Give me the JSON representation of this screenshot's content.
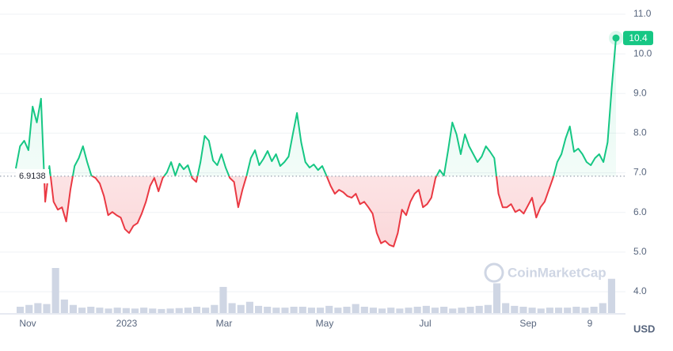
{
  "chart_data": {
    "type": "line",
    "x_labels": [
      "Nov",
      "2023",
      "Mar",
      "May",
      "Jul",
      "Sep",
      "9"
    ],
    "series": [
      {
        "name": "Price",
        "color": "#16c784",
        "below_color": "#ea3943",
        "values": [
          7.11,
          7.67,
          7.81,
          7.57,
          8.67,
          8.27,
          8.87,
          6.27,
          7.17,
          6.27,
          6.07,
          6.13,
          5.77,
          6.57,
          7.17,
          7.37,
          7.67,
          7.27,
          6.93,
          6.87,
          6.73,
          6.41,
          5.93,
          6.01,
          5.93,
          5.87,
          5.58,
          5.48,
          5.66,
          5.73,
          5.97,
          6.27,
          6.67,
          6.87,
          6.53,
          6.87,
          7.01,
          7.27,
          6.93,
          7.23,
          7.09,
          7.19,
          6.87,
          6.77,
          7.27,
          7.93,
          7.81,
          7.31,
          7.19,
          7.47,
          7.13,
          6.87,
          6.77,
          6.13,
          6.57,
          6.93,
          7.37,
          7.57,
          7.19,
          7.35,
          7.55,
          7.29,
          7.47,
          7.17,
          7.27,
          7.41,
          7.97,
          8.51,
          7.77,
          7.27,
          7.13,
          7.21,
          7.07,
          7.17,
          6.93,
          6.67,
          6.47,
          6.57,
          6.51,
          6.41,
          6.37,
          6.47,
          6.21,
          6.27,
          6.13,
          5.97,
          5.48,
          5.22,
          5.28,
          5.18,
          5.14,
          5.48,
          6.07,
          5.93,
          6.27,
          6.47,
          6.57,
          6.13,
          6.21,
          6.37,
          6.87,
          7.07,
          6.93,
          7.57,
          8.27,
          7.97,
          7.47,
          7.97,
          7.67,
          7.47,
          7.27,
          7.41,
          7.67,
          7.53,
          7.37,
          6.47,
          6.13,
          6.13,
          6.21,
          6.01,
          6.07,
          5.97,
          6.17,
          6.37,
          5.87,
          6.13,
          6.27,
          6.57,
          6.87,
          7.27,
          7.47,
          7.87,
          8.17,
          7.53,
          7.61,
          7.47,
          7.27,
          7.19,
          7.37,
          7.47,
          7.27,
          7.77,
          9.17,
          10.4
        ]
      }
    ],
    "baseline": 6.9138,
    "volume": {
      "color": "#cfd6e4",
      "values": [
        14,
        18,
        22,
        20,
        100,
        30,
        18,
        12,
        14,
        12,
        10,
        12,
        11,
        10,
        12,
        10,
        9,
        10,
        11,
        12,
        14,
        12,
        18,
        58,
        22,
        18,
        25,
        16,
        14,
        12,
        12,
        14,
        14,
        12,
        12,
        16,
        12,
        14,
        20,
        14,
        12,
        10,
        12,
        10,
        12,
        14,
        16,
        12,
        14,
        10,
        12,
        14,
        16,
        18,
        66,
        22,
        16,
        14,
        12,
        10,
        12,
        12,
        12,
        14,
        12,
        14,
        22,
        76
      ]
    },
    "ylim": [
      3.7,
      11.3
    ],
    "yticks": [
      {
        "value": 4,
        "label": "4.0"
      },
      {
        "value": 5,
        "label": "5.0"
      },
      {
        "value": 6,
        "label": "6.0"
      },
      {
        "value": 7,
        "label": "7.0"
      },
      {
        "value": 8,
        "label": "8.0"
      },
      {
        "value": 9,
        "label": "9.0"
      },
      {
        "value": 10,
        "label": "10.0"
      },
      {
        "value": 11,
        "label": "11.0"
      }
    ],
    "grid": true,
    "currency": "USD",
    "watermark": "CoinMarketCap"
  }
}
